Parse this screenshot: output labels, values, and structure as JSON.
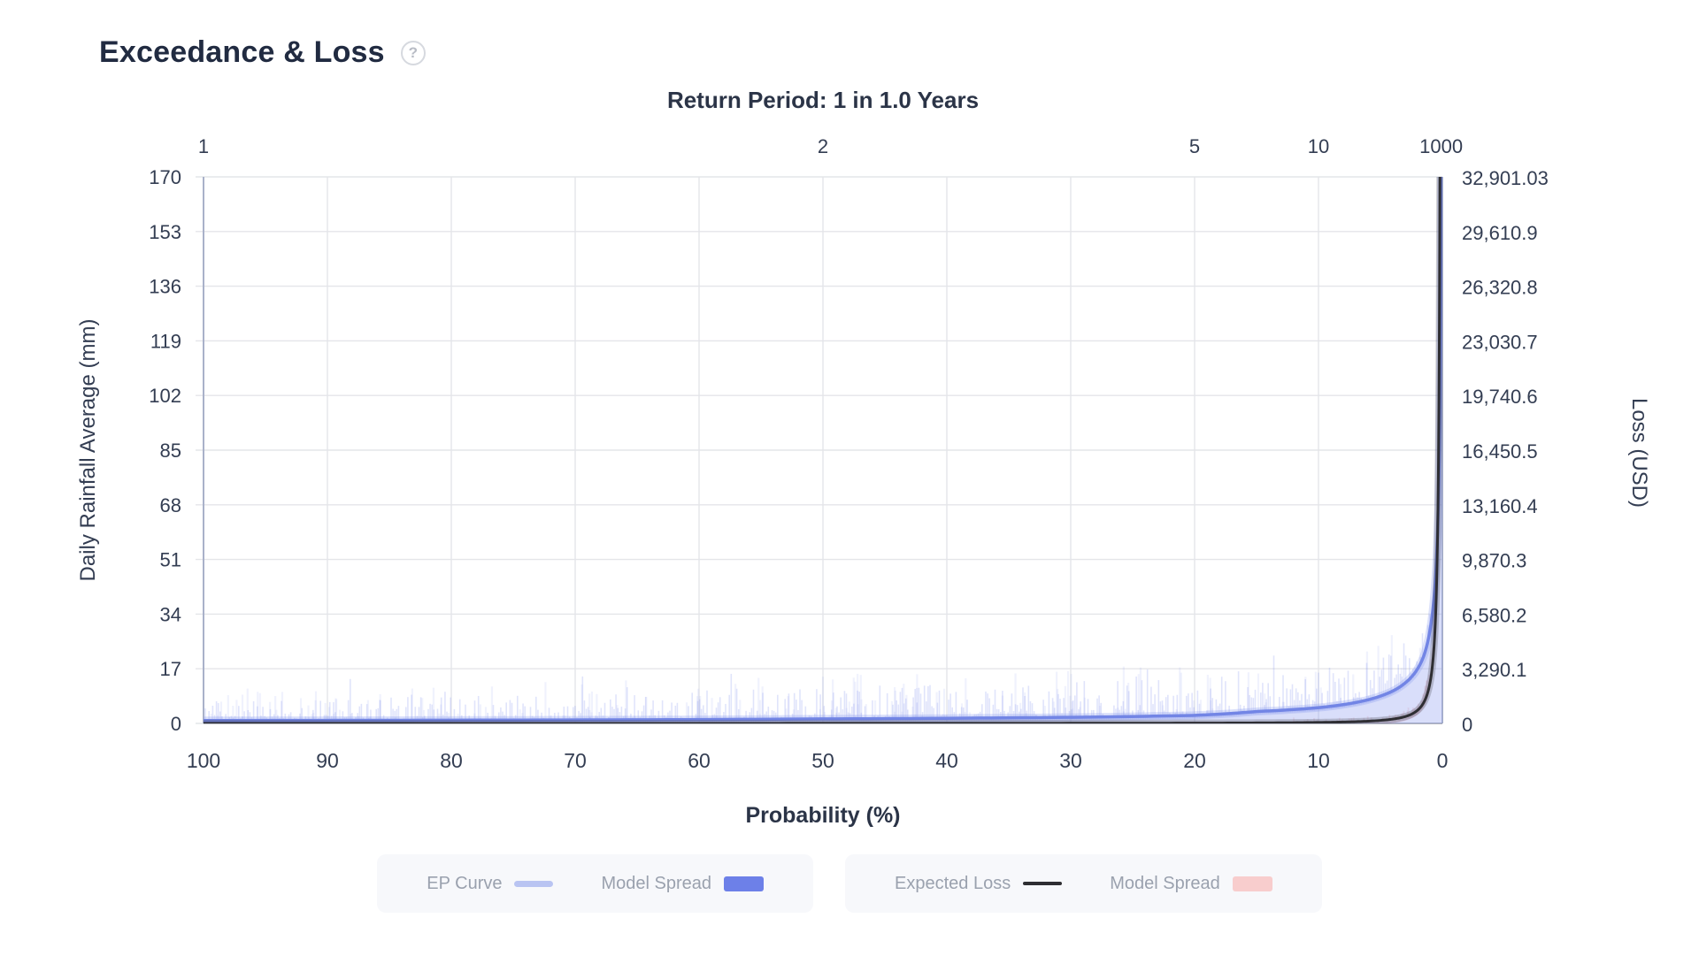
{
  "header": {
    "title": "Exceedance & Loss",
    "help_icon": "?"
  },
  "chart_data": {
    "type": "line",
    "title": "Return Period: 1 in 1.0 Years",
    "xlabel": "Probability (%)",
    "ylabel_left": "Daily Rainfall Average (mm)",
    "ylabel_right": "Loss (USD)",
    "xlim": [
      100,
      0
    ],
    "ylim_left": [
      0,
      170
    ],
    "ylim_right": [
      0,
      32901.03
    ],
    "grid": true,
    "x_bottom_ticks": [
      100,
      90,
      80,
      70,
      60,
      50,
      40,
      30,
      20,
      10,
      0
    ],
    "x_top_ticks": [
      {
        "label": "1",
        "probability": 100
      },
      {
        "label": "2",
        "probability": 50
      },
      {
        "label": "5",
        "probability": 20
      },
      {
        "label": "10",
        "probability": 10
      },
      {
        "label": "1000",
        "probability": 0.1
      }
    ],
    "left_ticks": [
      "0",
      "17",
      "34",
      "51",
      "68",
      "85",
      "102",
      "119",
      "136",
      "153",
      "170"
    ],
    "left_tick_values": [
      0,
      17,
      34,
      51,
      68,
      85,
      102,
      119,
      136,
      153,
      170
    ],
    "right_ticks": [
      "0",
      "3,290.1",
      "6,580.2",
      "9,870.3",
      "13,160.4",
      "16,450.5",
      "19,740.6",
      "23,030.7",
      "26,320.8",
      "29,610.9",
      "32,901.03"
    ],
    "right_tick_values": [
      0,
      3290.1,
      6580.2,
      9870.3,
      13160.4,
      16450.5,
      19740.6,
      23030.7,
      26320.8,
      29610.9,
      32901.03
    ],
    "series": [
      {
        "name": "EP Curve",
        "axis": "left",
        "color": "#7285e5",
        "spread_color": "#8b9af0",
        "points": [
          [
            100,
            0.9
          ],
          [
            80,
            1.0
          ],
          [
            60,
            1.2
          ],
          [
            50,
            1.4
          ],
          [
            40,
            1.6
          ],
          [
            30,
            1.9
          ],
          [
            20,
            2.5
          ],
          [
            15,
            3.7
          ],
          [
            10,
            4.9
          ],
          [
            7,
            6.5
          ],
          [
            5,
            8.5
          ],
          [
            3,
            12.6
          ],
          [
            2,
            17
          ],
          [
            1.5,
            21
          ],
          [
            1,
            29
          ],
          [
            0.7,
            38
          ],
          [
            0.5,
            49
          ],
          [
            0.3,
            73
          ],
          [
            0.2,
            100
          ],
          [
            0.15,
            125
          ],
          [
            0.1,
            170
          ]
        ]
      },
      {
        "name": "Expected Loss",
        "axis": "right",
        "color": "#2e2e33",
        "spread_color": "#f0b3b3",
        "points": [
          [
            100,
            0.3
          ],
          [
            50,
            4.4
          ],
          [
            20,
            19
          ],
          [
            10,
            59
          ],
          [
            5,
            181
          ],
          [
            3,
            412
          ],
          [
            2,
            795
          ],
          [
            1.5,
            1266
          ],
          [
            1,
            2438
          ],
          [
            0.7,
            4340
          ],
          [
            0.5,
            7480
          ],
          [
            0.35,
            13300
          ],
          [
            0.25,
            22966
          ],
          [
            0.2,
            32901
          ],
          [
            0.15,
            36000
          ],
          [
            0.12,
            36000
          ]
        ]
      }
    ],
    "colors": {
      "grid": "#e4e5e9",
      "axis_line": "#a9b1c9",
      "bottom_line": "#9aa0ad",
      "tick_text": "#333d52",
      "title_text": "#2b3447"
    }
  },
  "legend": {
    "group1": [
      {
        "label": "EP Curve",
        "swatch": "line",
        "color": "#b9c4f2"
      },
      {
        "label": "Model Spread",
        "swatch": "rect",
        "color": "#6d80e8"
      }
    ],
    "group2": [
      {
        "label": "Expected Loss",
        "swatch": "thinline",
        "color": "#2e2e32"
      },
      {
        "label": "Model Spread",
        "swatch": "rect",
        "color": "#f8cdcd"
      }
    ]
  }
}
